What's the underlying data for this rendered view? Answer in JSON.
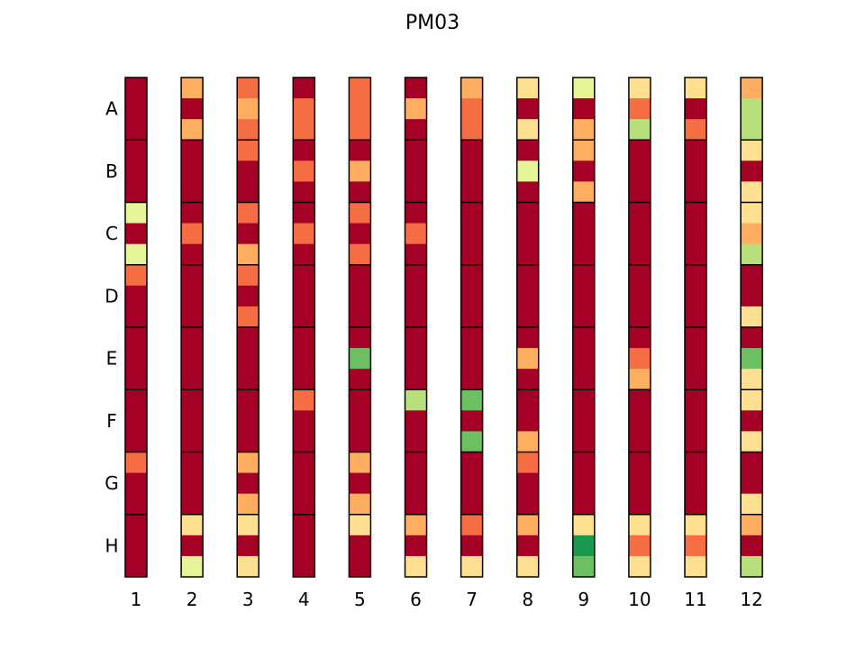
{
  "chart_data": {
    "type": "heatmap",
    "title": "PM03",
    "columns": [
      "1",
      "2",
      "3",
      "4",
      "5",
      "6",
      "7",
      "8",
      "9",
      "10",
      "11",
      "12"
    ],
    "row_labels": [
      "A",
      "B",
      "C",
      "D",
      "E",
      "F",
      "G",
      "H"
    ],
    "subrows_per_row": 3,
    "colorscale": "RdYlGn",
    "palette": [
      "#a50026",
      "#d73027",
      "#f46d43",
      "#fdae61",
      "#fee090",
      "#e6f598",
      "#b8e07a",
      "#6dc062",
      "#1a9850"
    ],
    "levels": [
      [
        0,
        0,
        0,
        0,
        0,
        0,
        5,
        0,
        5,
        2,
        0,
        0,
        0,
        0,
        0,
        0,
        0,
        0,
        2,
        0,
        0,
        0,
        0,
        0
      ],
      [
        3,
        0,
        3,
        0,
        0,
        0,
        0,
        2,
        0,
        0,
        0,
        0,
        0,
        0,
        0,
        0,
        0,
        0,
        0,
        0,
        0,
        4,
        0,
        5
      ],
      [
        2,
        3,
        2,
        2,
        0,
        0,
        2,
        0,
        3,
        2,
        0,
        2,
        0,
        0,
        0,
        0,
        0,
        0,
        3,
        0,
        3,
        4,
        0,
        4
      ],
      [
        0,
        2,
        2,
        0,
        2,
        0,
        0,
        2,
        0,
        0,
        0,
        0,
        0,
        0,
        0,
        2,
        0,
        0,
        0,
        0,
        0,
        0,
        0,
        0
      ],
      [
        2,
        2,
        2,
        0,
        3,
        0,
        2,
        0,
        2,
        0,
        0,
        0,
        0,
        7,
        0,
        0,
        0,
        0,
        3,
        0,
        3,
        4,
        0,
        0
      ],
      [
        0,
        3,
        0,
        0,
        0,
        0,
        0,
        2,
        0,
        0,
        0,
        0,
        0,
        0,
        0,
        6,
        0,
        0,
        0,
        0,
        0,
        3,
        0,
        4
      ],
      [
        3,
        2,
        2,
        0,
        0,
        0,
        0,
        0,
        0,
        0,
        0,
        0,
        0,
        0,
        0,
        7,
        0,
        7,
        0,
        0,
        0,
        2,
        0,
        4
      ],
      [
        4,
        0,
        4,
        0,
        5,
        0,
        0,
        0,
        0,
        0,
        0,
        0,
        0,
        3,
        0,
        0,
        0,
        3,
        2,
        0,
        0,
        3,
        0,
        4
      ],
      [
        5,
        0,
        3,
        3,
        0,
        3,
        0,
        0,
        0,
        0,
        0,
        0,
        0,
        0,
        0,
        0,
        0,
        0,
        0,
        0,
        0,
        4,
        8,
        7
      ],
      [
        4,
        2,
        6,
        0,
        0,
        0,
        0,
        0,
        0,
        0,
        0,
        0,
        0,
        2,
        3,
        0,
        0,
        0,
        0,
        0,
        0,
        4,
        2,
        4
      ],
      [
        4,
        0,
        2,
        0,
        0,
        0,
        0,
        0,
        0,
        0,
        0,
        0,
        0,
        0,
        0,
        0,
        0,
        0,
        0,
        0,
        0,
        4,
        2,
        4
      ],
      [
        3,
        6,
        6,
        4,
        0,
        4,
        4,
        3,
        6,
        0,
        0,
        4,
        0,
        7,
        4,
        4,
        0,
        4,
        0,
        0,
        4,
        3,
        0,
        6
      ]
    ]
  }
}
